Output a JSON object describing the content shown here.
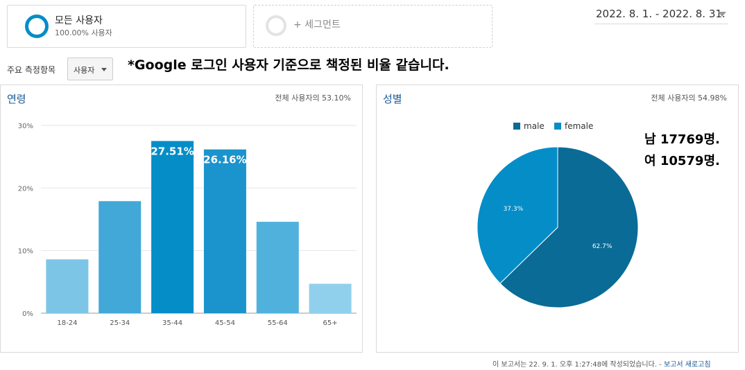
{
  "segments": {
    "all": {
      "name": "모든 사용자",
      "sub": "100.00% 사용자"
    },
    "add_label": "+ 세그먼트"
  },
  "date_range": "2022. 8. 1. - 2022. 8. 31.",
  "metric": {
    "label": "주요 측정항목",
    "selected": "사용자"
  },
  "annotation": "*Google 로그인 사용자 기준으로 책정된 비율 같습니다.",
  "age_panel": {
    "title": "연령",
    "note": "전체 사용자의 53.10%"
  },
  "gender_panel": {
    "title": "성별",
    "note": "전체 사용자의 54.98%",
    "summary_male": "남 17769명.",
    "summary_female": "여 10579명."
  },
  "footer": {
    "text": "이 보고서는 22. 9. 1. 오후 1:27:48에 작성되었습니다. -",
    "link": "보고서 새로고침"
  },
  "chart_data": [
    {
      "type": "bar",
      "categories": [
        "18-24",
        "25-34",
        "35-44",
        "45-54",
        "55-64",
        "65+"
      ],
      "values": [
        8.6,
        17.9,
        27.51,
        26.16,
        14.6,
        4.7
      ],
      "data_labels": [
        "",
        "",
        "27.51%",
        "26.16%",
        "",
        ""
      ],
      "colors": [
        "#7dc5e6",
        "#41a8d8",
        "#058dc7",
        "#1b93cc",
        "#50b2dc",
        "#90d0ec"
      ],
      "ylim": [
        0,
        30
      ],
      "yticks": [
        "0%",
        "10%",
        "20%",
        "30%"
      ],
      "grid": true
    },
    {
      "type": "pie",
      "labels": [
        "male",
        "female"
      ],
      "values": [
        62.7,
        37.3
      ],
      "slice_labels": [
        "62.7%",
        "37.3%"
      ],
      "colors": [
        "#0a6b96",
        "#058dc7"
      ],
      "legend": "top"
    }
  ]
}
